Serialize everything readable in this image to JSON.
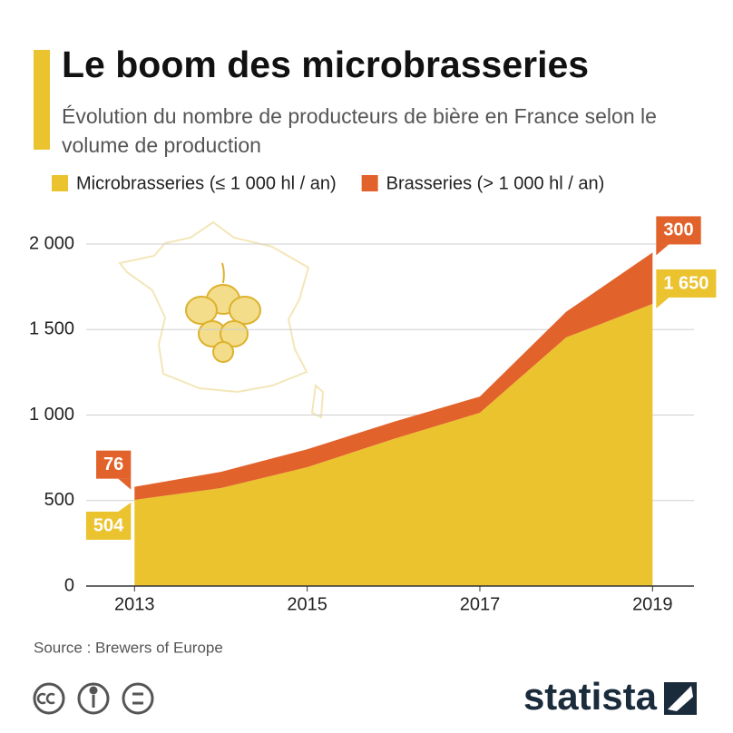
{
  "chart_data": {
    "type": "stacked_area",
    "title": "Le boom des microbrasseries",
    "subtitle": "Évolution du nombre de producteurs de bière en France selon le volume de production",
    "x": [
      2013,
      2014,
      2015,
      2016,
      2017,
      2018,
      2019
    ],
    "xlim": [
      2012.44,
      2019.48
    ],
    "xticks": [
      2013,
      2015,
      2017,
      2019
    ],
    "ylim": [
      0,
      2000
    ],
    "yticks": [
      0,
      500,
      {
        "value": 1000,
        "label": "1 000"
      },
      {
        "value": 1500,
        "label": "1 500"
      },
      {
        "value": 2000,
        "label": "2 000"
      }
    ],
    "grid": true,
    "series": [
      {
        "name": "Microbrasseries (≤ 1 000 hl / an)",
        "color": "#ebc32f",
        "values": [
          504,
          573,
          695,
          860,
          1013,
          1454,
          1650
        ],
        "value_labels": [
          "504",
          null,
          null,
          null,
          null,
          null,
          "1 650"
        ]
      },
      {
        "name": "Brasseries (> 1 000 hl / an)",
        "color": "#e2622b",
        "values": [
          76,
          95,
          105,
          100,
          95,
          150,
          300
        ],
        "value_labels": [
          "76",
          null,
          null,
          null,
          null,
          null,
          "300"
        ]
      }
    ],
    "source": "Source : Brewers of Europe",
    "brand": "statista"
  }
}
